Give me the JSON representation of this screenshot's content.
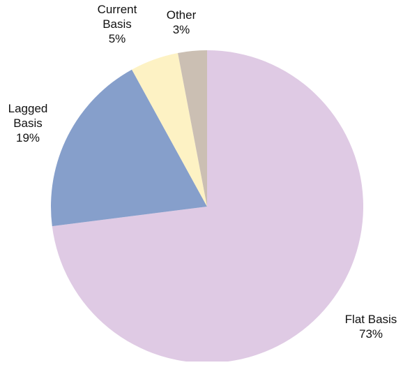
{
  "chart_data": {
    "type": "pie",
    "start": "12 o'clock",
    "direction": "clockwise",
    "slices": [
      {
        "label": [
          "Flat Basis"
        ],
        "percent_text": "73%",
        "value": 73,
        "color": "#dfcae4"
      },
      {
        "label": [
          "Lagged",
          "Basis"
        ],
        "percent_text": "19%",
        "value": 19,
        "color": "#869fcb"
      },
      {
        "label": [
          "Current",
          "Basis"
        ],
        "percent_text": "5%",
        "value": 5,
        "color": "#fdf2c4"
      },
      {
        "label": [
          "Other"
        ],
        "percent_text": "3%",
        "value": 3,
        "color": "#cbbfb3"
      }
    ]
  }
}
